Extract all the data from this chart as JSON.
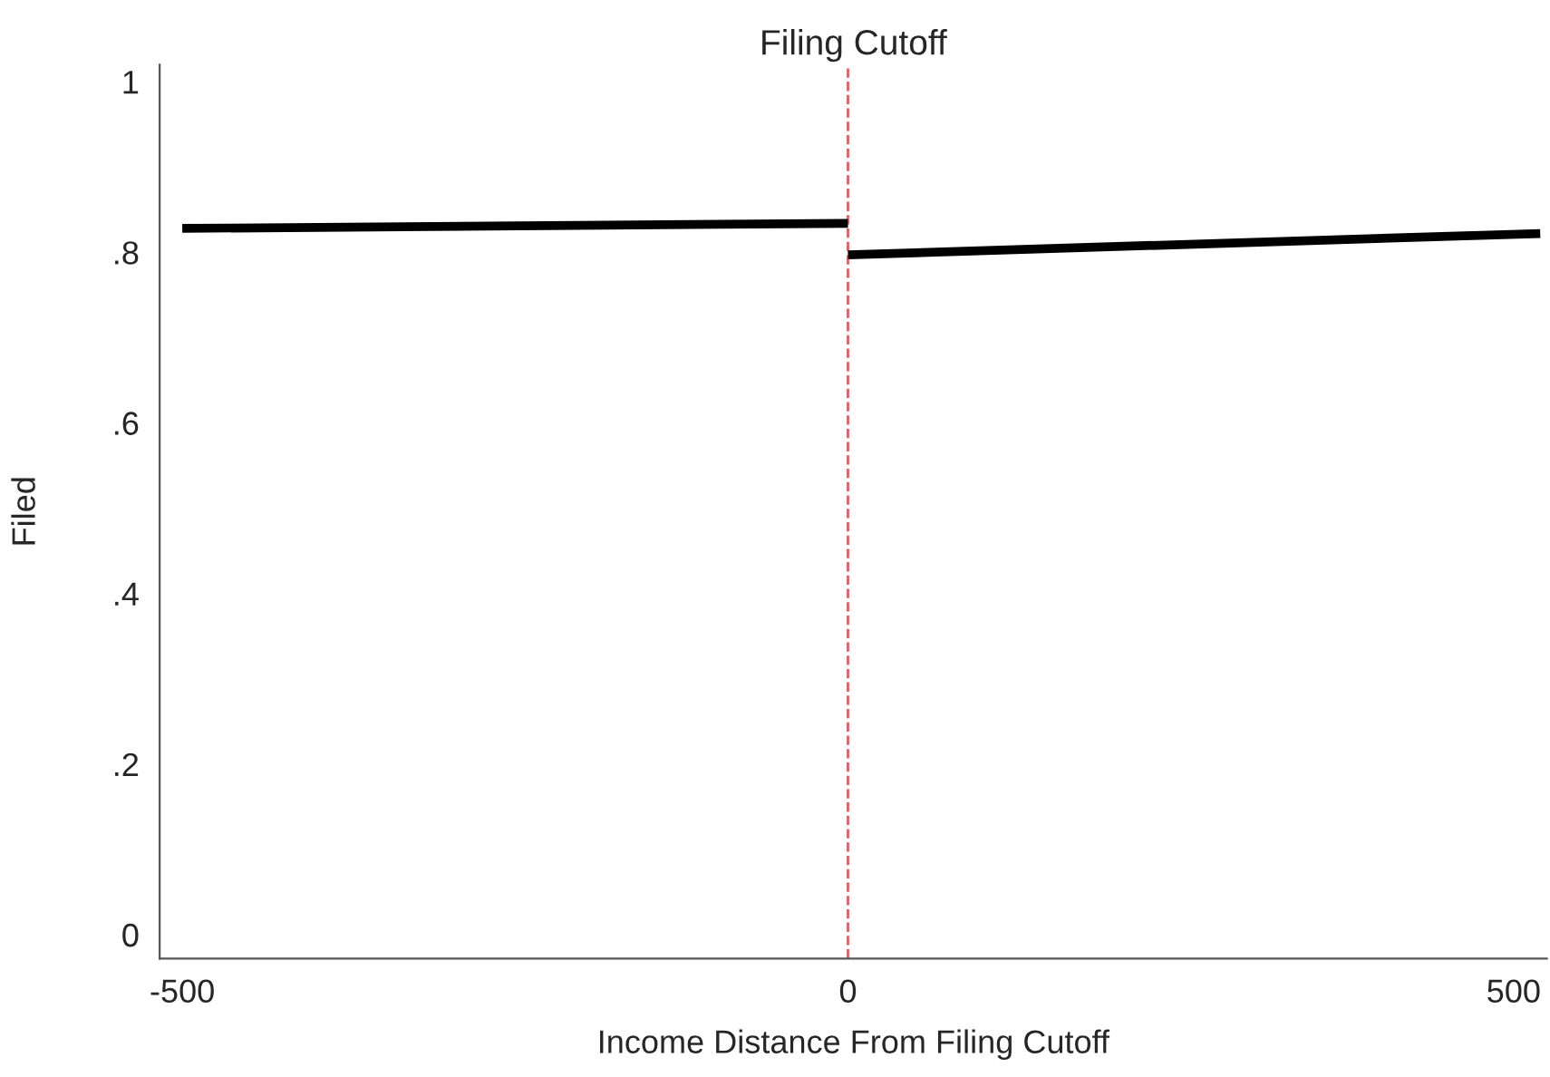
{
  "chart_data": {
    "type": "line",
    "title": "Filing Cutoff",
    "xlabel": "Income Distance From Filing Cutoff",
    "ylabel": "Filed",
    "series": [
      {
        "color": "#000000",
        "x": [
          -500,
          0
        ],
        "values": [
          0.828,
          0.834
        ]
      },
      {
        "color": "#000000",
        "x": [
          0,
          520
        ],
        "values": [
          0.797,
          0.822
        ]
      }
    ],
    "xlim": [
      -517,
      525
    ],
    "xticks": [
      -500,
      0,
      500
    ],
    "ylim": [
      -0.028,
      1.02
    ],
    "yticks": [
      {
        "value": 0,
        "label": "0"
      },
      {
        "value": 0.2,
        "label": ".2"
      },
      {
        "value": 0.4,
        "label": ".4"
      },
      {
        "value": 0.6,
        "label": ".6"
      },
      {
        "value": 0.8,
        "label": ".8"
      },
      {
        "value": 1,
        "label": "1"
      }
    ],
    "ref_lines": [
      {
        "axis": "x",
        "value": 0,
        "color": "#d9606a",
        "line_style": "dashed"
      }
    ],
    "grid": false,
    "line_style": "solid",
    "marker": "none"
  }
}
